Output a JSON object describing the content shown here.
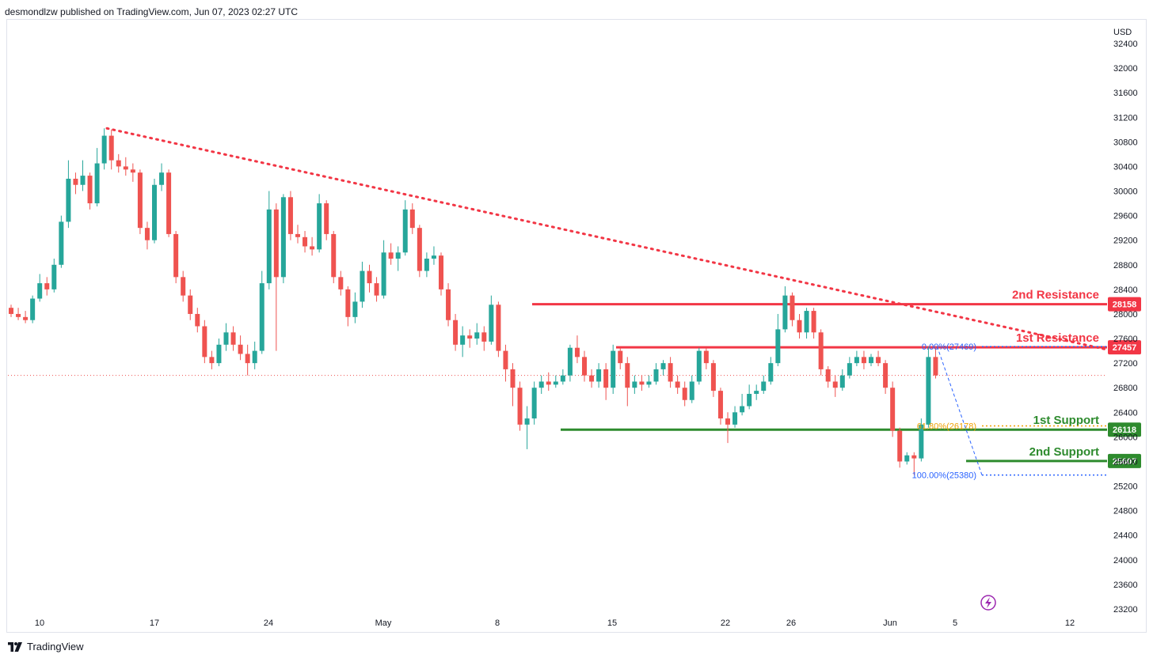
{
  "header": {
    "published_text": "desmondlzw published on TradingView.com, Jun 07, 2023 02:27 UTC"
  },
  "footer": {
    "brand_text": "TradingView"
  },
  "colors": {
    "up": "#26a69a",
    "down": "#ef5350",
    "resistance": "#f23645",
    "support": "#2e8b2e",
    "fib_blue": "#2962ff",
    "fib_orange": "#f0a000",
    "trendline": "#f23645"
  },
  "icons": {
    "flash": "lightning-icon",
    "logo": "tradingview-logo"
  },
  "chart_data": {
    "type": "candlestick",
    "currency": "USD",
    "ylim": [
      23000,
      32600
    ],
    "yticks": [
      32400,
      32000,
      31600,
      31200,
      30800,
      30400,
      30000,
      29600,
      29200,
      28800,
      28400,
      28000,
      27600,
      27200,
      26800,
      26400,
      26000,
      25600,
      25200,
      24800,
      24400,
      24000,
      23600,
      23200
    ],
    "xticks": [
      "10",
      "17",
      "24",
      "May",
      "8",
      "15",
      "22",
      "26",
      "Jun",
      "5",
      "12"
    ],
    "last_price_dotted": 27000,
    "levels": [
      {
        "name": "2nd Resistance",
        "value": 28158,
        "kind": "resistance"
      },
      {
        "name": "1st Resistance",
        "value": 27457,
        "kind": "resistance"
      },
      {
        "name": "1st Support",
        "value": 26118,
        "kind": "support"
      },
      {
        "name": "2nd Support",
        "value": 25607,
        "kind": "support"
      }
    ],
    "fib": [
      {
        "label": "0.00%(27469)",
        "value": 27469,
        "color": "blue"
      },
      {
        "label": "61.80%(26178)",
        "value": 26178,
        "color": "orange"
      },
      {
        "label": "100.00%(25380)",
        "value": 25380,
        "color": "blue"
      }
    ],
    "trendline": {
      "from_price": 31020,
      "to_price": 27420
    },
    "candles": [
      [
        28100,
        28000,
        28150,
        27950
      ],
      [
        28000,
        27950,
        28100,
        27900
      ],
      [
        27950,
        27900,
        28050,
        27850
      ],
      [
        27900,
        28250,
        28300,
        27850
      ],
      [
        28250,
        28500,
        28650,
        28200
      ],
      [
        28500,
        28400,
        28600,
        28300
      ],
      [
        28400,
        28800,
        28900,
        28350
      ],
      [
        28800,
        29500,
        29600,
        28750
      ],
      [
        29500,
        30200,
        30500,
        29400
      ],
      [
        30200,
        30100,
        30300,
        29950
      ],
      [
        30100,
        30250,
        30500,
        30000
      ],
      [
        30250,
        29800,
        30300,
        29700
      ],
      [
        29800,
        30450,
        30700,
        29750
      ],
      [
        30450,
        30900,
        31020,
        30350
      ],
      [
        30900,
        30500,
        31000,
        30350
      ],
      [
        30500,
        30400,
        30600,
        30300
      ],
      [
        30400,
        30350,
        30550,
        30250
      ],
      [
        30350,
        30300,
        30450,
        30150
      ],
      [
        30300,
        29400,
        30350,
        29300
      ],
      [
        29400,
        29200,
        29500,
        29050
      ],
      [
        29200,
        30100,
        30200,
        29150
      ],
      [
        30100,
        30300,
        30450,
        30000
      ],
      [
        30300,
        29300,
        30350,
        29250
      ],
      [
        29300,
        28600,
        29350,
        28500
      ],
      [
        28600,
        28300,
        28700,
        28200
      ],
      [
        28300,
        28000,
        28400,
        27900
      ],
      [
        28000,
        27800,
        28100,
        27700
      ],
      [
        27800,
        27300,
        27900,
        27200
      ],
      [
        27300,
        27200,
        27400,
        27100
      ],
      [
        27200,
        27500,
        27600,
        27150
      ],
      [
        27500,
        27700,
        27850,
        27400
      ],
      [
        27700,
        27500,
        27800,
        27400
      ],
      [
        27500,
        27350,
        27650,
        27250
      ],
      [
        27350,
        27200,
        27500,
        27000
      ],
      [
        27200,
        27400,
        27550,
        27100
      ],
      [
        27400,
        28500,
        28700,
        27350
      ],
      [
        28500,
        29700,
        30000,
        28400
      ],
      [
        29700,
        28600,
        29800,
        27400
      ],
      [
        28600,
        29900,
        29950,
        28500
      ],
      [
        29900,
        29300,
        30000,
        29200
      ],
      [
        29300,
        29250,
        29450,
        29150
      ],
      [
        29250,
        29100,
        29350,
        29000
      ],
      [
        29100,
        29050,
        29250,
        28950
      ],
      [
        29050,
        29800,
        29950,
        29000
      ],
      [
        29800,
        29300,
        29850,
        29200
      ],
      [
        29300,
        28600,
        29350,
        28500
      ],
      [
        28600,
        28400,
        28700,
        28300
      ],
      [
        28400,
        27950,
        28450,
        27800
      ],
      [
        27950,
        28200,
        28350,
        27850
      ],
      [
        28200,
        28700,
        28850,
        28100
      ],
      [
        28700,
        28500,
        28800,
        28350
      ],
      [
        28500,
        28300,
        28600,
        28200
      ],
      [
        28300,
        29000,
        29200,
        28250
      ],
      [
        29000,
        28900,
        29150,
        28800
      ],
      [
        28900,
        29000,
        29100,
        28700
      ],
      [
        29000,
        29700,
        29850,
        28950
      ],
      [
        29700,
        29400,
        29800,
        29300
      ],
      [
        29400,
        28700,
        29450,
        28600
      ],
      [
        28700,
        28900,
        29000,
        28600
      ],
      [
        28900,
        28950,
        29100,
        28800
      ],
      [
        28950,
        28400,
        29000,
        28300
      ],
      [
        28400,
        27900,
        28500,
        27800
      ],
      [
        27900,
        27500,
        28000,
        27400
      ],
      [
        27500,
        27650,
        27800,
        27300
      ],
      [
        27650,
        27600,
        27750,
        27450
      ],
      [
        27600,
        27700,
        27850,
        27500
      ],
      [
        27700,
        27550,
        27800,
        27400
      ],
      [
        27550,
        28150,
        28300,
        27500
      ],
      [
        28150,
        27400,
        28200,
        27300
      ],
      [
        27400,
        27100,
        27500,
        26900
      ],
      [
        27100,
        26800,
        27200,
        26500
      ],
      [
        26800,
        26200,
        26900,
        26100
      ],
      [
        26200,
        26300,
        26500,
        25800
      ],
      [
        26300,
        26800,
        26900,
        26200
      ],
      [
        26800,
        26900,
        27000,
        26700
      ],
      [
        26900,
        26850,
        27050,
        26750
      ],
      [
        26850,
        26900,
        27000,
        26800
      ],
      [
        26900,
        27000,
        27100,
        26850
      ],
      [
        27000,
        27450,
        27500,
        26900
      ],
      [
        27450,
        27300,
        27650,
        27200
      ],
      [
        27300,
        27000,
        27400,
        26900
      ],
      [
        27000,
        26900,
        27100,
        26800
      ],
      [
        26900,
        27100,
        27200,
        26800
      ],
      [
        27100,
        26800,
        27200,
        26600
      ],
      [
        26800,
        27400,
        27500,
        26700
      ],
      [
        27400,
        27200,
        27450,
        27100
      ],
      [
        27200,
        26800,
        27300,
        26500
      ],
      [
        26800,
        26900,
        27000,
        26700
      ],
      [
        26900,
        26850,
        27000,
        26750
      ],
      [
        26850,
        26900,
        27000,
        26800
      ],
      [
        26900,
        27100,
        27200,
        26850
      ],
      [
        27100,
        27200,
        27250,
        27000
      ],
      [
        27200,
        26900,
        27300,
        26800
      ],
      [
        26900,
        26800,
        27000,
        26700
      ],
      [
        26800,
        26600,
        26900,
        26500
      ],
      [
        26600,
        26900,
        27000,
        26550
      ],
      [
        26900,
        27400,
        27450,
        26850
      ],
      [
        27400,
        27200,
        27450,
        27100
      ],
      [
        27200,
        26750,
        27250,
        26650
      ],
      [
        26750,
        26300,
        26800,
        26200
      ],
      [
        26300,
        26200,
        26400,
        25900
      ],
      [
        26200,
        26400,
        26500,
        26150
      ],
      [
        26400,
        26500,
        26700,
        26350
      ],
      [
        26500,
        26700,
        26850,
        26450
      ],
      [
        26700,
        26750,
        26850,
        26600
      ],
      [
        26750,
        26900,
        27000,
        26700
      ],
      [
        26900,
        27200,
        27300,
        26850
      ],
      [
        27200,
        27750,
        28000,
        27150
      ],
      [
        27750,
        28300,
        28450,
        27700
      ],
      [
        28300,
        27900,
        28350,
        27800
      ],
      [
        27900,
        27700,
        28000,
        27600
      ],
      [
        27700,
        28050,
        28100,
        27600
      ],
      [
        28050,
        27700,
        28100,
        27600
      ],
      [
        27700,
        27100,
        27750,
        27000
      ],
      [
        27100,
        26900,
        27150,
        26800
      ],
      [
        26900,
        26800,
        27000,
        26650
      ],
      [
        26800,
        27000,
        27100,
        26750
      ],
      [
        27000,
        27200,
        27300,
        26950
      ],
      [
        27200,
        27300,
        27400,
        27150
      ],
      [
        27300,
        27200,
        27400,
        27100
      ],
      [
        27200,
        27300,
        27350,
        27150
      ],
      [
        27300,
        27200,
        27400,
        27150
      ],
      [
        27200,
        26800,
        27250,
        26700
      ],
      [
        26800,
        26100,
        26900,
        26000
      ],
      [
        26100,
        25600,
        26150,
        25500
      ],
      [
        25600,
        25700,
        25750,
        25550
      ],
      [
        25700,
        25650,
        25750,
        25380
      ],
      [
        25650,
        26200,
        26300,
        25600
      ],
      [
        26200,
        27300,
        27469,
        26150
      ],
      [
        27300,
        27000,
        27469,
        26950
      ]
    ]
  }
}
